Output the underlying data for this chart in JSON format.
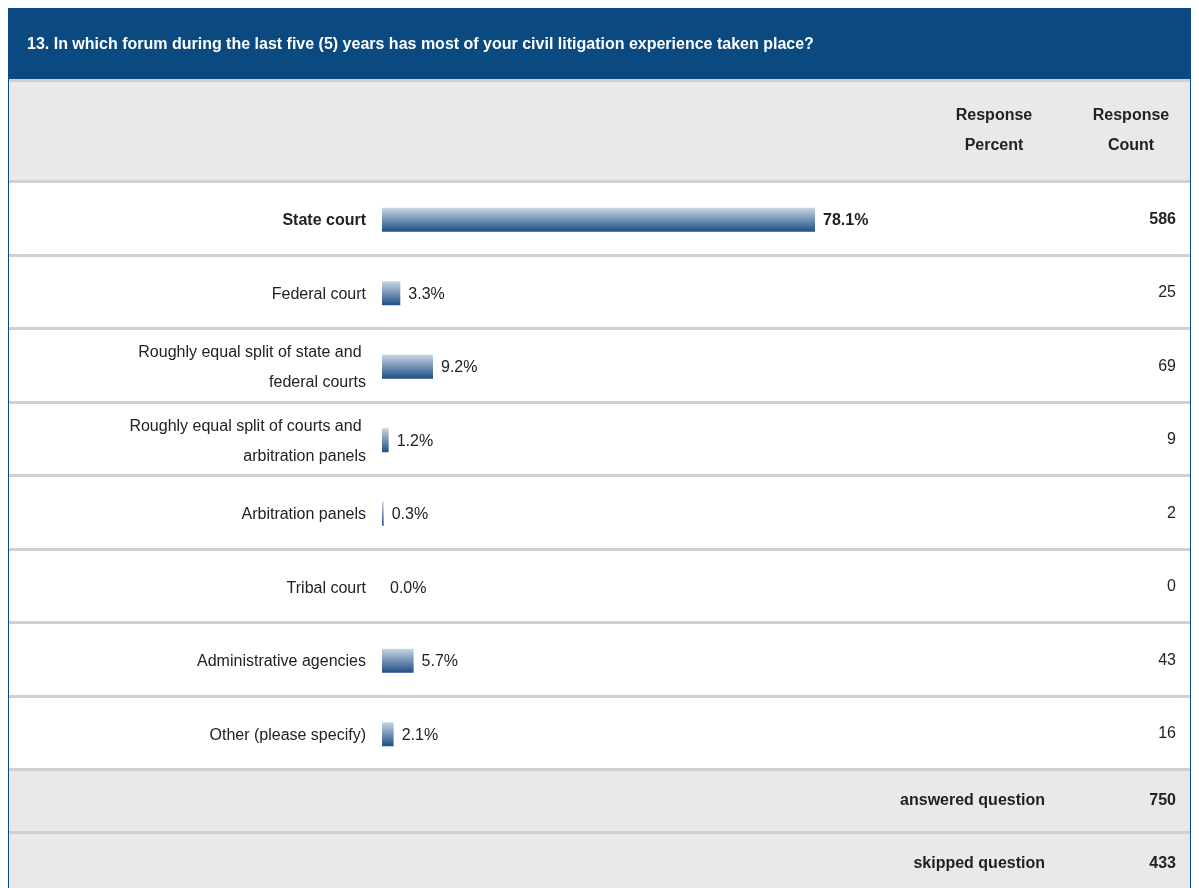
{
  "chart_data": {
    "type": "bar",
    "orientation": "horizontal",
    "title": "13. In which forum during the last five (5) years has most of your civil litigation experience taken place?",
    "categories": [
      "State court",
      "Federal court",
      "Roughly equal split of state and federal courts",
      "Roughly equal split of courts and arbitration panels",
      "Arbitration panels",
      "Tribal court",
      "Administrative agencies",
      "Other (please specify)"
    ],
    "values": [
      78.1,
      3.3,
      9.2,
      1.2,
      0.3,
      0.0,
      5.7,
      2.1
    ],
    "value_labels": [
      "78.1%",
      "3.3%",
      "9.2%",
      "1.2%",
      "0.3%",
      "0.0%",
      "5.7%",
      "2.1%"
    ],
    "color": "#1d4f86",
    "annotations": [
      "Response Percent",
      "Response Count",
      "586",
      "25",
      "69",
      "9",
      "2",
      "0",
      "43",
      "16",
      "answered question",
      "750",
      "skipped question",
      "433"
    ]
  }
}
